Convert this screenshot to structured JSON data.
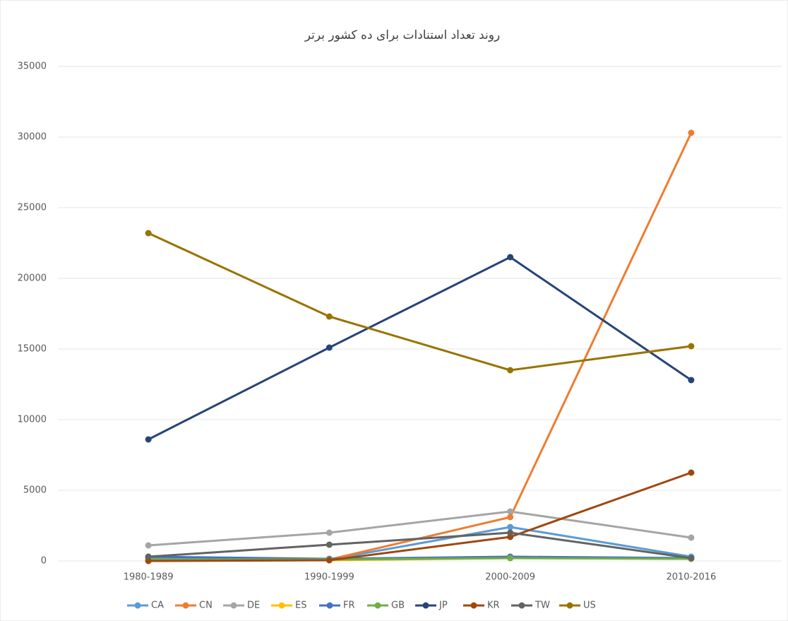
{
  "chart_data": {
    "type": "line",
    "title": "روند تعداد استنادات برای ده کشور برتر",
    "categories": [
      "1980-1989",
      "1990-1999",
      "2000-2009",
      "2010-2016"
    ],
    "ylim": [
      0,
      35000
    ],
    "yticks": [
      0,
      5000,
      10000,
      15000,
      20000,
      25000,
      30000,
      35000
    ],
    "grid": true,
    "series": [
      {
        "name": "CA",
        "color": "#5b9bd5",
        "values": [
          200,
          100,
          2400,
          300
        ]
      },
      {
        "name": "CN",
        "color": "#ed7d31",
        "values": [
          0,
          100,
          3100,
          30300
        ]
      },
      {
        "name": "DE",
        "color": "#a5a5a5",
        "values": [
          1100,
          2000,
          3500,
          1650
        ]
      },
      {
        "name": "ES",
        "color": "#ffc000",
        "values": [
          50,
          50,
          200,
          150
        ]
      },
      {
        "name": "FR",
        "color": "#4472c4",
        "values": [
          300,
          150,
          300,
          200
        ]
      },
      {
        "name": "GB",
        "color": "#70ad47",
        "values": [
          100,
          100,
          200,
          150
        ]
      },
      {
        "name": "JP",
        "color": "#264478",
        "values": [
          8600,
          15100,
          21500,
          12800
        ]
      },
      {
        "name": "KR",
        "color": "#9e480e",
        "values": [
          0,
          50,
          1700,
          6250
        ]
      },
      {
        "name": "TW",
        "color": "#636363",
        "values": [
          300,
          1150,
          2000,
          200
        ]
      },
      {
        "name": "US",
        "color": "#997300",
        "values": [
          23200,
          17300,
          13500,
          15200
        ]
      }
    ]
  }
}
